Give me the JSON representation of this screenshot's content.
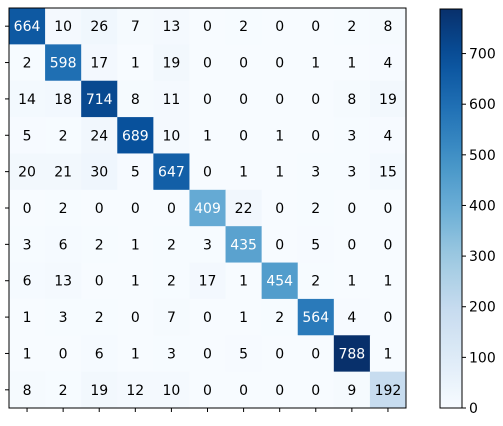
{
  "chart_data": {
    "type": "heatmap",
    "title": "",
    "xlabel": "",
    "ylabel": "",
    "colormap": "Blues",
    "value_range": [
      0,
      788
    ],
    "rows": [
      [
        664,
        10,
        26,
        7,
        13,
        0,
        2,
        0,
        0,
        2,
        8
      ],
      [
        2,
        598,
        17,
        1,
        19,
        0,
        0,
        0,
        1,
        1,
        4
      ],
      [
        14,
        18,
        714,
        8,
        11,
        0,
        0,
        0,
        0,
        8,
        19
      ],
      [
        5,
        2,
        24,
        689,
        10,
        1,
        0,
        1,
        0,
        3,
        4
      ],
      [
        20,
        21,
        30,
        5,
        647,
        0,
        1,
        1,
        3,
        3,
        15
      ],
      [
        0,
        2,
        0,
        0,
        0,
        409,
        22,
        0,
        2,
        0,
        0
      ],
      [
        3,
        6,
        2,
        1,
        2,
        3,
        435,
        0,
        5,
        0,
        0
      ],
      [
        6,
        13,
        0,
        1,
        2,
        17,
        1,
        454,
        2,
        1,
        1
      ],
      [
        1,
        3,
        2,
        0,
        7,
        0,
        1,
        2,
        564,
        4,
        0
      ],
      [
        1,
        0,
        6,
        1,
        3,
        0,
        5,
        0,
        0,
        788,
        1
      ],
      [
        8,
        2,
        19,
        12,
        10,
        0,
        0,
        0,
        0,
        9,
        192
      ]
    ],
    "colorbar": {
      "ticks": [
        0,
        100,
        200,
        300,
        400,
        500,
        600,
        700
      ],
      "tick_labels": [
        "0",
        "100",
        "200",
        "300",
        "400",
        "500",
        "600",
        "700"
      ]
    }
  }
}
